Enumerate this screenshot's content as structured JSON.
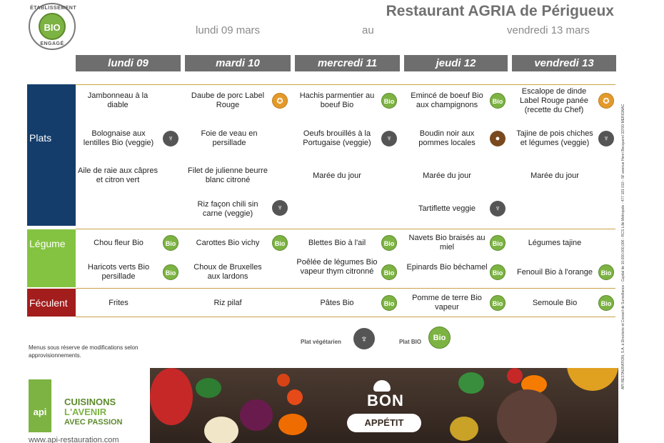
{
  "header": {
    "badge_top": "ÉTABLISSEMENT",
    "badge_center": "BIO",
    "badge_bottom": "ENGAGÉ",
    "title": "Restaurant AGRIA de Périgueux",
    "date_from": "lundi 09 mars",
    "date_sep": "au",
    "date_to": "vendredi 13 mars"
  },
  "days": [
    "lundi 09",
    "mardi 10",
    "mercredi 11",
    "jeudi 12",
    "vendredi 13"
  ],
  "categories": {
    "plats": "Plats",
    "legume": "Légume",
    "feculent": "Féculent"
  },
  "menu": {
    "plats": [
      [
        "Jambonneau à la diable",
        "Daube de porc Label Rouge",
        "Hachis parmentier au boeuf Bio",
        "Emincé de boeuf Bio aux champignons",
        "Escalope de dinde Label Rouge panée (recette du Chef)"
      ],
      [
        "Bolognaise aux lentilles Bio (veggie)",
        "Foie de veau en persillade",
        "Oeufs brouillés à la Portugaise (veggie)",
        "Boudin noir aux pommes locales",
        "Tajine de pois chiches et légumes (veggie)"
      ],
      [
        "Aile de raie aux câpres et citron vert",
        "Filet de julienne beurre blanc citroné",
        "Marée du jour",
        "Marée du jour",
        "Marée du jour"
      ],
      [
        "",
        "Riz façon chili sin carne (veggie)",
        "",
        "Tartiflette veggie",
        ""
      ]
    ],
    "legume": [
      [
        "Chou fleur Bio",
        "Carottes Bio vichy",
        "Blettes Bio à l'ail",
        "Navets Bio braisés au miel",
        "Légumes tajine"
      ],
      [
        "Haricots verts Bio persillade",
        "Choux de Bruxelles aux lardons",
        "Poêlée de légumes Bio vapeur thym citronné",
        "Epinards Bio béchamel",
        "Fenouil Bio à l'orange"
      ]
    ],
    "feculent": [
      [
        "Frites",
        "Riz pilaf",
        "Pâtes Bio",
        "Pomme de terre Bio vapeur",
        "Semoule Bio"
      ]
    ]
  },
  "icons": {
    "bio_text": "Bio",
    "veg_glyph": "♆",
    "label_glyph": "✪",
    "pig_glyph": "●"
  },
  "footnote": "Menus sous réserve de modifications selon approvisionnements.",
  "legend": {
    "veg_label": "Plat végétarien",
    "bio_label": "Plat BIO",
    "bio_text": "Bio"
  },
  "brand": {
    "api": "api",
    "slogan_1": "CUISINONS",
    "slogan_2": "L'AVENIR",
    "slogan_3": "AVEC PASSION",
    "website": "www.api-restauration.com"
  },
  "banner": {
    "bon": "BON",
    "appetit": "APPÉTIT"
  },
  "legal": "API RESTAURATION, S.A. à Directoire et Conseil de Surveillance - Capital de 10.000.000,00€ - RCS Lille Métropole - 477 181 010 - 5F avenue Henri Becquerel 33700 MERIGNAC",
  "colors": {
    "plats": "#143d6b",
    "legume": "#84c341",
    "feculent": "#a31d1d",
    "bio": "#7cb342",
    "day_header": "#6e6e6e"
  }
}
